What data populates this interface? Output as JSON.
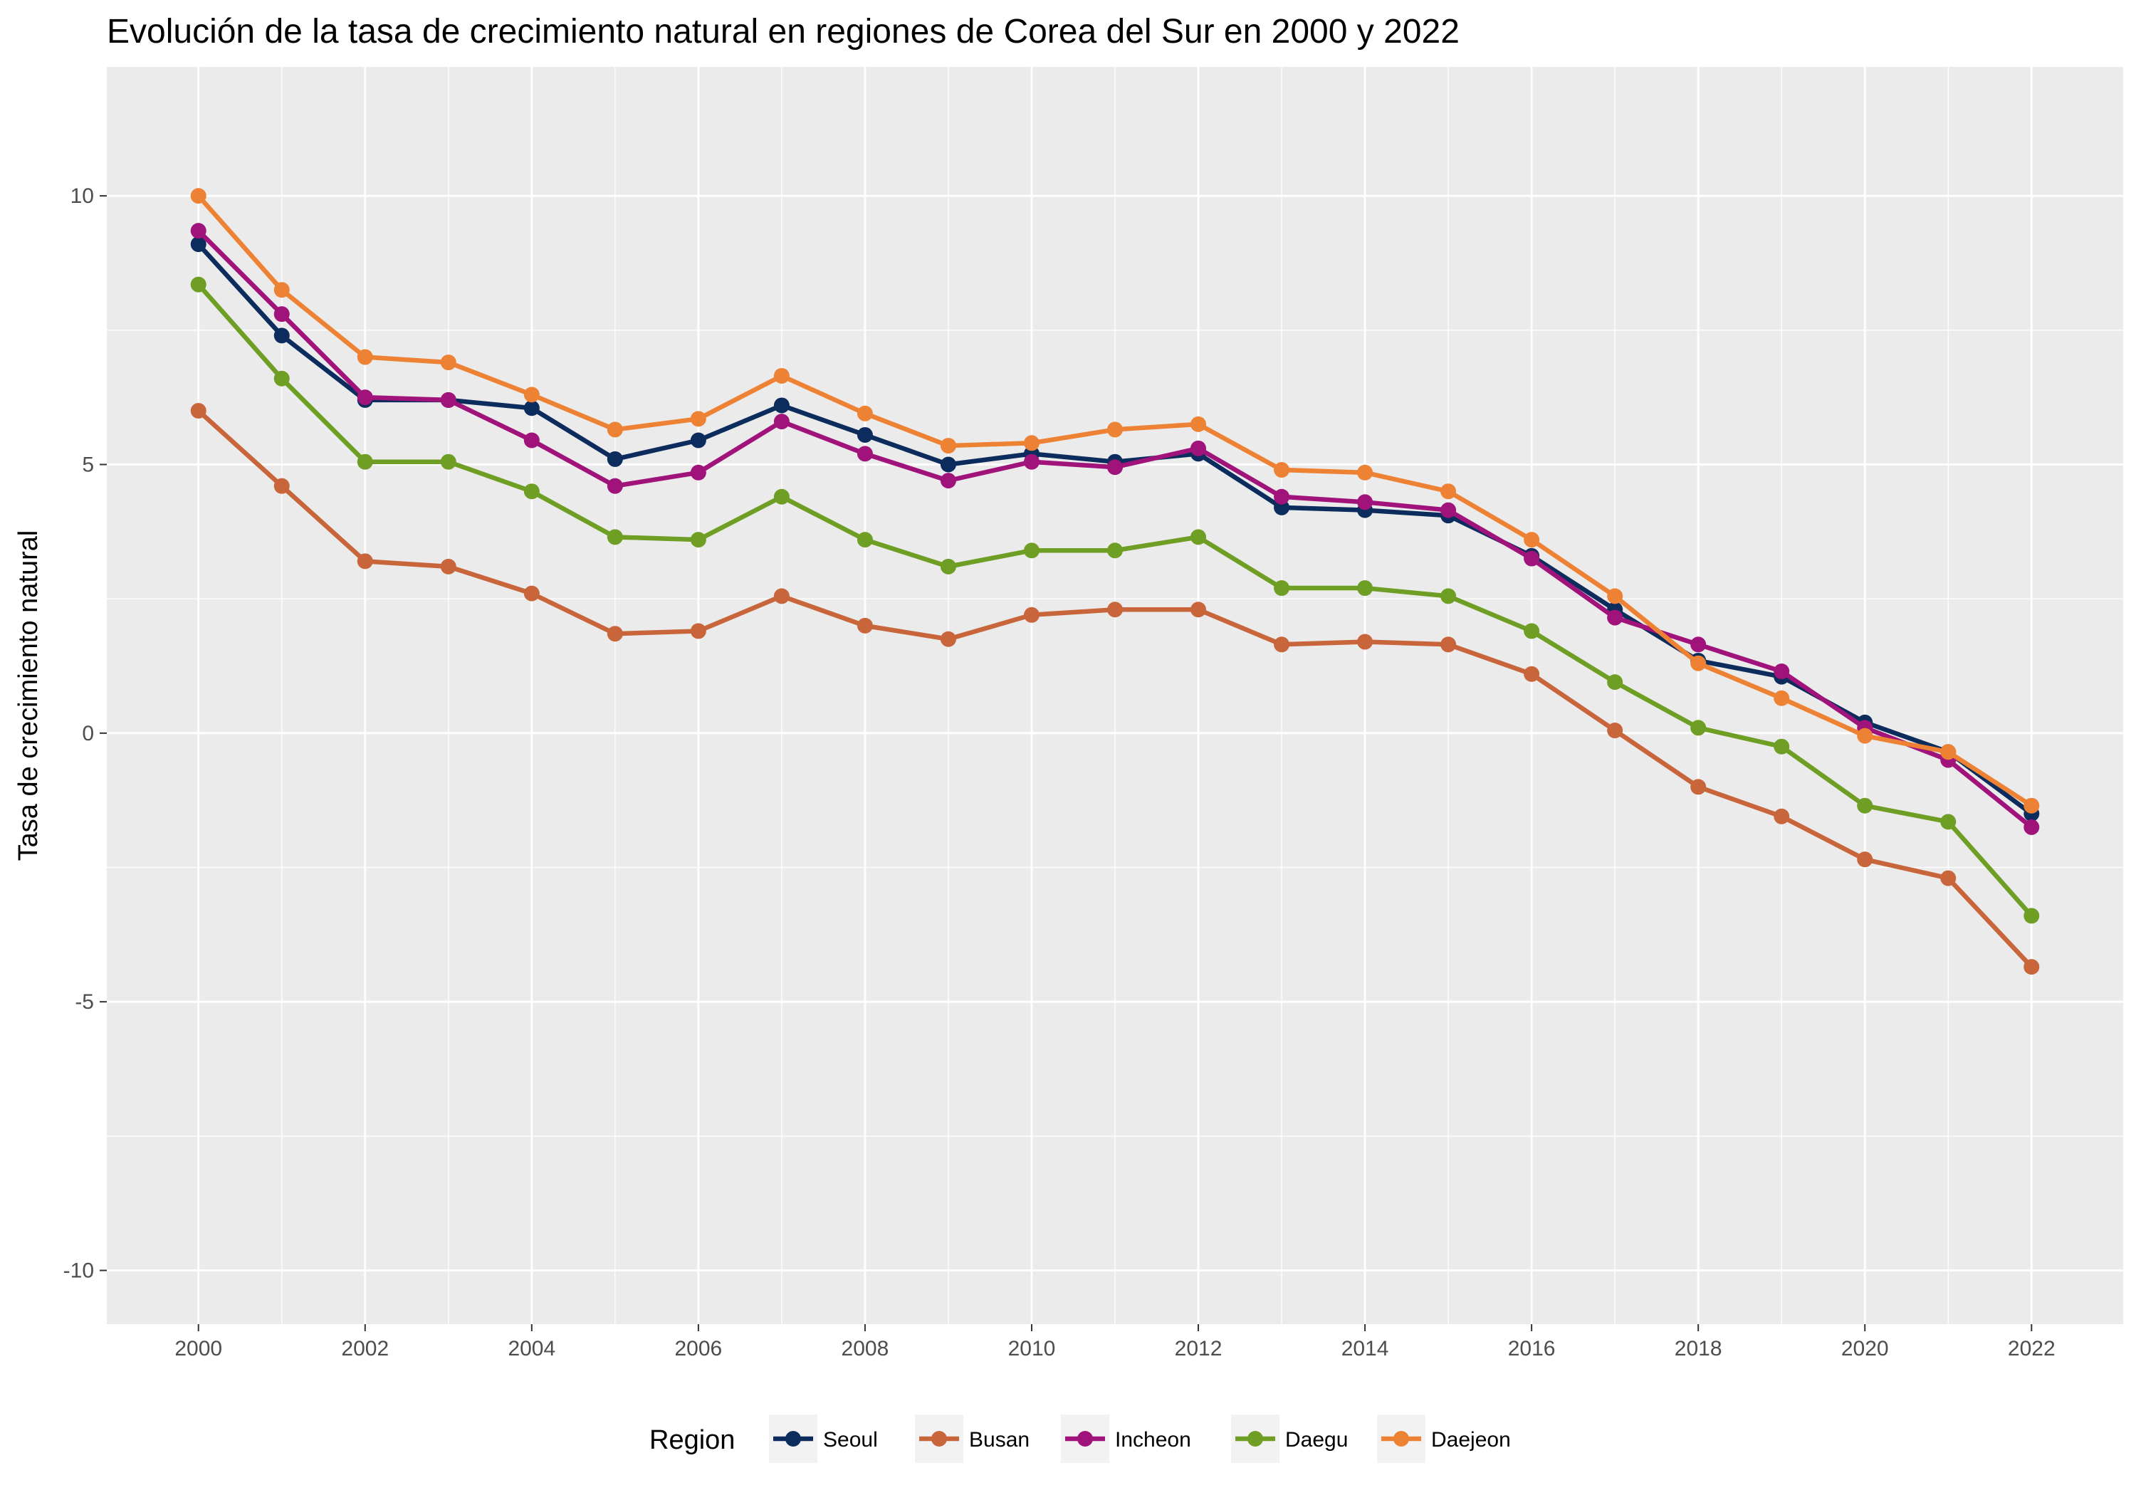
{
  "chart_data": {
    "type": "line",
    "title": "Evolución de la tasa de crecimiento natural en regiones de Corea del Sur en 2000 y 2022",
    "xlabel": "",
    "ylabel": "Tasa de crecimiento natural",
    "legend_title": "Region",
    "legend_position": "bottom",
    "grid": true,
    "xlim": [
      1998.9,
      2023.1
    ],
    "ylim": [
      -11,
      12.4
    ],
    "x_ticks": [
      2000,
      2002,
      2004,
      2006,
      2008,
      2010,
      2012,
      2014,
      2016,
      2018,
      2020,
      2022
    ],
    "x_tick_labels": [
      "2000",
      "2002",
      "2004",
      "2006",
      "2008",
      "2010",
      "2012",
      "2014",
      "2016",
      "2018",
      "2020",
      "2022"
    ],
    "y_ticks": [
      -10,
      -5,
      0,
      5,
      10
    ],
    "y_tick_labels": [
      "-10",
      "-5",
      "0",
      "5",
      "10"
    ],
    "x": [
      2000,
      2001,
      2002,
      2003,
      2004,
      2005,
      2006,
      2007,
      2008,
      2009,
      2010,
      2011,
      2012,
      2013,
      2014,
      2015,
      2016,
      2017,
      2018,
      2019,
      2020,
      2021,
      2022
    ],
    "series": [
      {
        "name": "Seoul",
        "color": "#0b2c5c",
        "values": [
          9.1,
          7.4,
          6.2,
          6.2,
          6.05,
          5.1,
          5.45,
          6.1,
          5.55,
          5.0,
          5.2,
          5.05,
          5.2,
          4.2,
          4.15,
          4.05,
          3.3,
          2.3,
          1.35,
          1.05,
          0.2,
          -0.35,
          -1.5
        ]
      },
      {
        "name": "Busan",
        "color": "#c8653a",
        "values": [
          6.0,
          4.6,
          3.2,
          3.1,
          2.6,
          1.85,
          1.9,
          2.55,
          2.0,
          1.75,
          2.2,
          2.3,
          2.3,
          1.65,
          1.7,
          1.65,
          1.1,
          0.05,
          -1.0,
          -1.55,
          -2.35,
          -2.7,
          -4.35
        ]
      },
      {
        "name": "Incheon",
        "color": "#a0137a",
        "values": [
          9.35,
          7.8,
          6.25,
          6.2,
          5.45,
          4.6,
          4.85,
          5.8,
          5.2,
          4.7,
          5.05,
          4.95,
          5.3,
          4.4,
          4.3,
          4.15,
          3.25,
          2.15,
          1.65,
          1.15,
          0.1,
          -0.5,
          -1.75
        ]
      },
      {
        "name": "Daegu",
        "color": "#6f9e24",
        "values": [
          8.35,
          6.6,
          5.05,
          5.05,
          4.5,
          3.65,
          3.6,
          4.4,
          3.6,
          3.1,
          3.4,
          3.4,
          3.65,
          2.7,
          2.7,
          2.55,
          1.9,
          0.95,
          0.1,
          -0.25,
          -1.35,
          -1.65,
          -3.4
        ]
      },
      {
        "name": "Daejeon",
        "color": "#ee8234",
        "values": [
          10.0,
          8.25,
          7.0,
          6.9,
          6.3,
          5.65,
          5.85,
          6.65,
          5.95,
          5.35,
          5.4,
          5.65,
          5.75,
          4.9,
          4.85,
          4.5,
          3.6,
          2.55,
          1.3,
          0.65,
          -0.05,
          -0.35,
          -1.35
        ]
      }
    ]
  }
}
